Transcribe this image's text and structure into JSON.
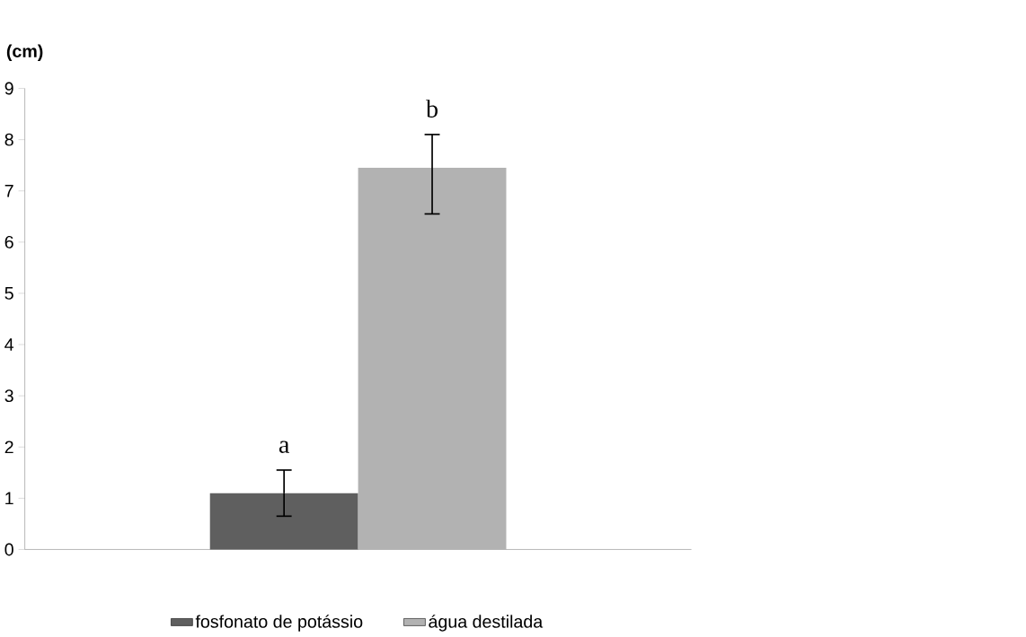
{
  "chart_data": {
    "type": "bar",
    "ylabel": "(cm)",
    "categories": [
      null
    ],
    "series": [
      {
        "name": "fosfonato de potássio",
        "color": "#5f5f5f",
        "values": [
          1.1
        ],
        "errors": [
          [
            0.65,
            1.55
          ]
        ]
      },
      {
        "name": "água destilada",
        "color": "#b2b2b2",
        "values": [
          7.45
        ],
        "errors": [
          [
            6.55,
            8.1
          ]
        ]
      }
    ],
    "annotations": [
      "a",
      "b"
    ],
    "ylim": [
      0,
      9
    ],
    "yticks": [
      0,
      1,
      2,
      3,
      4,
      5,
      6,
      7,
      8,
      9
    ],
    "grid": false,
    "legend": "bottom"
  }
}
